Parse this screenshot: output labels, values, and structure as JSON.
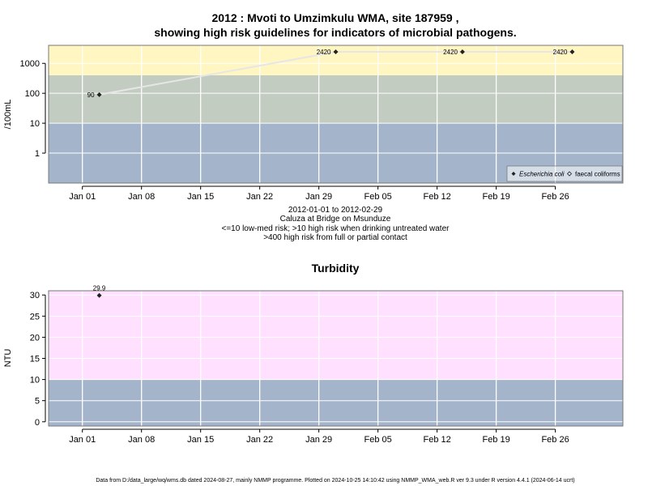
{
  "header": {
    "title_line1": "2012 : Mvoti to Umzimkulu WMA, site 187959 ,",
    "title_line2": "showing high risk guidelines for indicators of microbial pathogens."
  },
  "caption": {
    "line1": "2012-01-01 to 2012-02-29",
    "line2": "Caluza at Bridge on Msunduze",
    "line3": "<=10 low-med risk; >10 high risk when drinking untreated water",
    "line4": ">400 high risk from full or partial contact"
  },
  "footer": {
    "text": "Data from D:/data_large/wq/wms.db dated 2024-08-27, mainly NMMP programme. Plotted on 2024-10-25 14:10:42 using NMMP_WMA_web.R ver 9.3 under R version 4.4.1 (2024-06-14 ucrt)"
  },
  "colors": {
    "low_band": "#a3b4cb",
    "mid_band": "#c2ccc0",
    "high_band": "#fff6c2",
    "turb_high_band": "#ffe0ff",
    "gridline": "#ffffff",
    "series_line": "#e6e6e6",
    "marker": "#222222"
  },
  "chart_data": [
    {
      "type": "scatter",
      "title": "",
      "ylabel": "/100mL",
      "y_scale": "log",
      "ylim": [
        0.1,
        4000
      ],
      "xlim": [
        "2011-12-28",
        "2012-03-05"
      ],
      "x_ticks": [
        {
          "date": "2012-01-01",
          "label": "Jan 01"
        },
        {
          "date": "2012-01-08",
          "label": "Jan 08"
        },
        {
          "date": "2012-01-15",
          "label": "Jan 15"
        },
        {
          "date": "2012-01-22",
          "label": "Jan 22"
        },
        {
          "date": "2012-01-29",
          "label": "Jan 29"
        },
        {
          "date": "2012-02-05",
          "label": "Feb 05"
        },
        {
          "date": "2012-02-12",
          "label": "Feb 12"
        },
        {
          "date": "2012-02-19",
          "label": "Feb 19"
        },
        {
          "date": "2012-02-26",
          "label": "Feb 26"
        }
      ],
      "y_ticks": [
        {
          "value": 1,
          "label": "1"
        },
        {
          "value": 10,
          "label": "10"
        },
        {
          "value": 100,
          "label": "100"
        },
        {
          "value": 1000,
          "label": "1000"
        }
      ],
      "bands": [
        {
          "from": 0.1,
          "to": 10,
          "color": "#a3b4cb"
        },
        {
          "from": 10,
          "to": 400,
          "color": "#c2ccc0"
        },
        {
          "from": 400,
          "to": 4000,
          "color": "#fff6c2"
        }
      ],
      "grid": true,
      "legend_position": "bottom-right",
      "legend": [
        {
          "label": "Escherichia coli",
          "italic": true,
          "marker": "filled-diamond"
        },
        {
          "label": "faecal coliforms",
          "italic": false,
          "marker": "open-diamond"
        }
      ],
      "series": [
        {
          "name": "Escherichia coli",
          "x": [
            "2012-01-03",
            "2012-01-31",
            "2012-02-15",
            "2012-02-28"
          ],
          "y": [
            90,
            2420,
            2420,
            2420
          ],
          "labels": [
            "90",
            "2420",
            "2420",
            "2420"
          ]
        }
      ]
    },
    {
      "type": "scatter",
      "title": "Turbidity",
      "ylabel": "NTU",
      "y_scale": "linear",
      "ylim": [
        -1,
        31
      ],
      "xlim": [
        "2011-12-28",
        "2012-03-05"
      ],
      "x_ticks": [
        {
          "date": "2012-01-01",
          "label": "Jan 01"
        },
        {
          "date": "2012-01-08",
          "label": "Jan 08"
        },
        {
          "date": "2012-01-15",
          "label": "Jan 15"
        },
        {
          "date": "2012-01-22",
          "label": "Jan 22"
        },
        {
          "date": "2012-01-29",
          "label": "Jan 29"
        },
        {
          "date": "2012-02-05",
          "label": "Feb 05"
        },
        {
          "date": "2012-02-12",
          "label": "Feb 12"
        },
        {
          "date": "2012-02-19",
          "label": "Feb 19"
        },
        {
          "date": "2012-02-26",
          "label": "Feb 26"
        }
      ],
      "y_ticks": [
        {
          "value": 0,
          "label": "0"
        },
        {
          "value": 5,
          "label": "5"
        },
        {
          "value": 10,
          "label": "10"
        },
        {
          "value": 15,
          "label": "15"
        },
        {
          "value": 20,
          "label": "20"
        },
        {
          "value": 25,
          "label": "25"
        },
        {
          "value": 30,
          "label": "30"
        }
      ],
      "bands": [
        {
          "from": -1,
          "to": 10,
          "color": "#a3b4cb"
        },
        {
          "from": 10,
          "to": 31,
          "color": "#ffe0ff"
        }
      ],
      "grid": true,
      "series": [
        {
          "name": "",
          "x": [
            "2012-01-03"
          ],
          "y": [
            29.9
          ],
          "labels": [
            "29.9"
          ]
        }
      ]
    }
  ]
}
